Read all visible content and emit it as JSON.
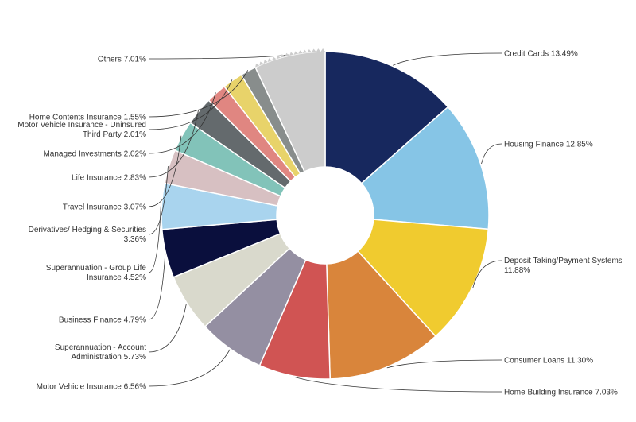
{
  "chart_data": {
    "type": "pie",
    "variant": "donut",
    "title": "",
    "series": [
      {
        "name": "Credit Cards",
        "value": 13.49,
        "label": "Credit Cards 13.49%",
        "color": "#17285e"
      },
      {
        "name": "Housing Finance",
        "value": 12.85,
        "label": "Housing Finance 12.85%",
        "color": "#86c5e6"
      },
      {
        "name": "Deposit Taking/Payment Systems",
        "value": 11.88,
        "label": "Deposit Taking/Payment Systems 11.88%",
        "color": "#f0cb2f"
      },
      {
        "name": "Consumer Loans",
        "value": 11.3,
        "label": "Consumer Loans 11.30%",
        "color": "#d9853b"
      },
      {
        "name": "Home Building Insurance",
        "value": 7.03,
        "label": "Home Building Insurance 7.03%",
        "color": "#d05453"
      },
      {
        "name": "Motor Vehicle Insurance",
        "value": 6.56,
        "label": "Motor Vehicle Insurance 6.56%",
        "color": "#948fa2"
      },
      {
        "name": "Superannuation - Account Administration",
        "value": 5.73,
        "label": "Superannuation - Account Administration 5.73%",
        "color": "#d9d9cc"
      },
      {
        "name": "Business Finance",
        "value": 4.79,
        "label": "Business Finance 4.79%",
        "color": "#0a0f3d"
      },
      {
        "name": "Superannuation - Group Life Insurance",
        "value": 4.52,
        "label": "Superannuation - Group Life Insurance 4.52%",
        "color": "#a9d4ee"
      },
      {
        "name": "Derivatives/ Hedging & Securities",
        "value": 3.36,
        "label": "Derivatives/ Hedging & Securities 3.36%",
        "color": "#d7c0c2"
      },
      {
        "name": "Travel Insurance",
        "value": 3.07,
        "label": "Travel Insurance 3.07%",
        "color": "#82c3b9"
      },
      {
        "name": "Life Insurance",
        "value": 2.83,
        "label": "Life Insurance 2.83%",
        "color": "#646a6d"
      },
      {
        "name": "Managed Investments",
        "value": 2.02,
        "label": "Managed Investments 2.02%",
        "color": "#e08681"
      },
      {
        "name": "Motor Vehicle Insurance - Uninsured Third Party",
        "value": 2.01,
        "label": "Motor Vehicle Insurance - Uninsured Third Party 2.01%",
        "color": "#e8d36a"
      },
      {
        "name": "Home Contents Insurance",
        "value": 1.55,
        "label": "Home Contents Insurance 1.55%",
        "color": "#888d8c"
      },
      {
        "name": "Others",
        "value": 7.01,
        "label": "Others 7.01%",
        "color": "#cccccc"
      }
    ],
    "legend": "none",
    "data_labels": "outside with leader lines"
  }
}
